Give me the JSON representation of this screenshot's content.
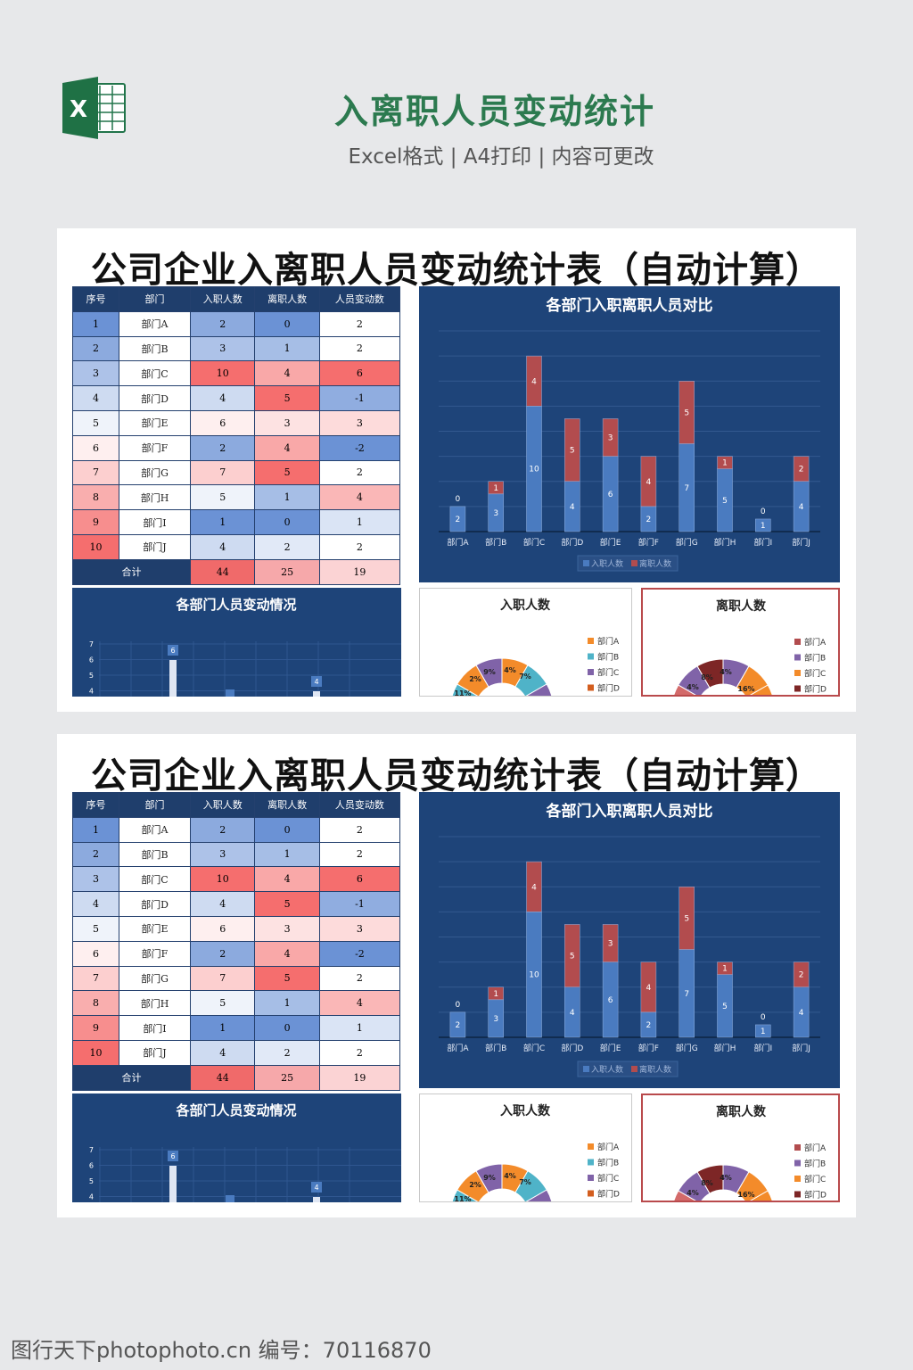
{
  "header": {
    "title": "入离职人员变动统计",
    "subtitle": "Excel格式 | A4打印 | 内容可更改",
    "logo_letter": "X"
  },
  "panel_title": "公司企业入离职人员变动统计表（自动计算）",
  "table": {
    "headers": [
      "序号",
      "部门",
      "入职人数",
      "离职人数",
      "人员变动数"
    ],
    "rows": [
      [
        "1",
        "部门A",
        "2",
        "0",
        "2"
      ],
      [
        "2",
        "部门B",
        "3",
        "1",
        "2"
      ],
      [
        "3",
        "部门C",
        "10",
        "4",
        "6"
      ],
      [
        "4",
        "部门D",
        "4",
        "5",
        "-1"
      ],
      [
        "5",
        "部门E",
        "6",
        "3",
        "3"
      ],
      [
        "6",
        "部门F",
        "2",
        "4",
        "-2"
      ],
      [
        "7",
        "部门G",
        "7",
        "5",
        "2"
      ],
      [
        "8",
        "部门H",
        "5",
        "1",
        "4"
      ],
      [
        "9",
        "部门I",
        "1",
        "0",
        "1"
      ],
      [
        "10",
        "部门J",
        "4",
        "2",
        "2"
      ]
    ],
    "total_label": "合计",
    "totals": [
      "44",
      "25",
      "19"
    ]
  },
  "chart_data": [
    {
      "type": "bar",
      "stacked": true,
      "title": "各部门入职离职人员对比",
      "categories": [
        "部门A",
        "部门B",
        "部门C",
        "部门D",
        "部门E",
        "部门F",
        "部门G",
        "部门H",
        "部门I",
        "部门J"
      ],
      "series": [
        {
          "name": "入职人数",
          "values": [
            2,
            3,
            10,
            4,
            6,
            2,
            7,
            5,
            1,
            4
          ]
        },
        {
          "name": "离职人数",
          "values": [
            0,
            1,
            4,
            5,
            3,
            4,
            5,
            1,
            0,
            2
          ]
        }
      ],
      "ylim": [
        0,
        16
      ],
      "grid": true,
      "legend": "bottom"
    },
    {
      "type": "bar",
      "title": "各部门人员变动情况",
      "ytick_labels": [
        "7",
        "6",
        "5",
        "4"
      ],
      "visible_value_labels": [
        "6",
        "4"
      ]
    },
    {
      "type": "pie",
      "title": "入职人数",
      "legend": [
        "部门A",
        "部门B",
        "部门C",
        "部门D"
      ],
      "visible_labels": [
        "11%",
        "2%",
        "9%",
        "4%",
        "7%"
      ]
    },
    {
      "type": "pie",
      "title": "离职人数",
      "legend": [
        "部门A",
        "部门B",
        "部门C",
        "部门D"
      ],
      "visible_labels": [
        "4%",
        "8%",
        "4%",
        "16%"
      ]
    }
  ],
  "colors": {
    "entry": "#4a7bc0",
    "exit": "#b24c4e",
    "chart_bg": "#1e4479",
    "header_green": "#2c7a4f"
  },
  "footer": "图行天下photophoto.cn 编号：70116870"
}
